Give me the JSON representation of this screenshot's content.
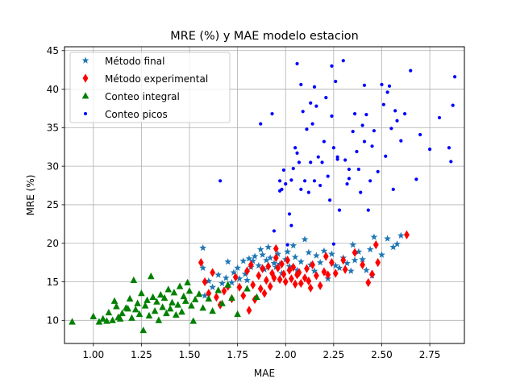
{
  "chart_data": {
    "type": "scatter",
    "title": "MRE (%) y MAE modelo estacion",
    "xlabel": "MAE",
    "ylabel": "MRE (%)",
    "xlim": [
      0.85,
      2.93
    ],
    "ylim": [
      7.0,
      45.5
    ],
    "xticks": [
      1.0,
      1.25,
      1.5,
      1.75,
      2.0,
      2.25,
      2.5,
      2.75
    ],
    "xtick_labels": [
      "1.00",
      "1.25",
      "1.50",
      "1.75",
      "2.00",
      "2.25",
      "2.50",
      "2.75"
    ],
    "yticks": [
      10,
      15,
      20,
      25,
      30,
      35,
      40,
      45
    ],
    "ytick_labels": [
      "10",
      "15",
      "20",
      "25",
      "30",
      "35",
      "40",
      "45"
    ],
    "grid": true,
    "legend_position": "top-left",
    "series": [
      {
        "name": "Método final",
        "marker": "star",
        "color": "#1f77b4",
        "points": [
          [
            1.57,
            19.4
          ],
          [
            1.57,
            16.8
          ],
          [
            1.58,
            13.2
          ],
          [
            1.6,
            15.1
          ],
          [
            1.62,
            14.3
          ],
          [
            1.65,
            15.9
          ],
          [
            1.67,
            14.8
          ],
          [
            1.69,
            15.5
          ],
          [
            1.7,
            17.6
          ],
          [
            1.72,
            14.9
          ],
          [
            1.73,
            16.2
          ],
          [
            1.75,
            16.8
          ],
          [
            1.76,
            15.4
          ],
          [
            1.78,
            17.7
          ],
          [
            1.79,
            16.0
          ],
          [
            1.8,
            15.2
          ],
          [
            1.81,
            18.0
          ],
          [
            1.82,
            16.9
          ],
          [
            1.83,
            17.7
          ],
          [
            1.84,
            18.3
          ],
          [
            1.86,
            17.1
          ],
          [
            1.87,
            19.2
          ],
          [
            1.88,
            18.5
          ],
          [
            1.89,
            16.6
          ],
          [
            1.9,
            17.8
          ],
          [
            1.91,
            19.5
          ],
          [
            1.92,
            18.1
          ],
          [
            1.94,
            17.4
          ],
          [
            1.95,
            16.9
          ],
          [
            1.96,
            18.6
          ],
          [
            1.97,
            17.3
          ],
          [
            1.98,
            16.1
          ],
          [
            2.0,
            17.9
          ],
          [
            2.01,
            18.9
          ],
          [
            2.02,
            17.0
          ],
          [
            2.04,
            19.7
          ],
          [
            2.05,
            18.2
          ],
          [
            2.06,
            16.5
          ],
          [
            2.08,
            17.6
          ],
          [
            2.1,
            20.5
          ],
          [
            2.12,
            18.8
          ],
          [
            2.13,
            17.2
          ],
          [
            2.15,
            16.4
          ],
          [
            2.16,
            18.4
          ],
          [
            2.18,
            17.5
          ],
          [
            2.2,
            19.0
          ],
          [
            2.22,
            15.4
          ],
          [
            2.24,
            18.6
          ],
          [
            2.26,
            17.1
          ],
          [
            2.28,
            16.8
          ],
          [
            2.3,
            18.1
          ],
          [
            2.32,
            17.4
          ],
          [
            2.35,
            19.8
          ],
          [
            2.36,
            17.8
          ],
          [
            2.38,
            18.9
          ],
          [
            2.4,
            17.9
          ],
          [
            2.42,
            16.5
          ],
          [
            2.44,
            19.2
          ],
          [
            2.46,
            20.8
          ],
          [
            2.5,
            18.5
          ],
          [
            2.53,
            20.6
          ],
          [
            2.56,
            19.5
          ],
          [
            2.58,
            19.9
          ],
          [
            2.6,
            21.0
          ],
          [
            2.45,
            15.8
          ],
          [
            2.34,
            16.4
          ]
        ]
      },
      {
        "name": "Método experimental",
        "marker": "diamond",
        "color": "#ff0000",
        "points": [
          [
            1.56,
            17.5
          ],
          [
            1.58,
            15.0
          ],
          [
            1.6,
            13.5
          ],
          [
            1.62,
            16.2
          ],
          [
            1.64,
            13.0
          ],
          [
            1.66,
            12.0
          ],
          [
            1.68,
            13.8
          ],
          [
            1.7,
            14.4
          ],
          [
            1.72,
            12.8
          ],
          [
            1.74,
            15.6
          ],
          [
            1.76,
            14.3
          ],
          [
            1.78,
            13.2
          ],
          [
            1.8,
            16.4
          ],
          [
            1.81,
            11.3
          ],
          [
            1.82,
            17.2
          ],
          [
            1.83,
            14.6
          ],
          [
            1.84,
            12.7
          ],
          [
            1.86,
            15.8
          ],
          [
            1.87,
            14.1
          ],
          [
            1.88,
            16.7
          ],
          [
            1.89,
            13.5
          ],
          [
            1.9,
            15.2
          ],
          [
            1.91,
            17.0
          ],
          [
            1.92,
            14.4
          ],
          [
            1.93,
            16.1
          ],
          [
            1.94,
            15.5
          ],
          [
            1.95,
            18.1
          ],
          [
            1.96,
            16.8
          ],
          [
            1.97,
            15.3
          ],
          [
            1.98,
            17.3
          ],
          [
            1.99,
            16.0
          ],
          [
            2.0,
            15.0
          ],
          [
            2.01,
            17.8
          ],
          [
            2.02,
            16.5
          ],
          [
            2.03,
            15.4
          ],
          [
            2.04,
            16.9
          ],
          [
            2.05,
            14.7
          ],
          [
            2.06,
            15.9
          ],
          [
            2.07,
            16.2
          ],
          [
            2.08,
            14.8
          ],
          [
            2.1,
            15.5
          ],
          [
            2.11,
            16.7
          ],
          [
            2.12,
            15.1
          ],
          [
            2.14,
            17.2
          ],
          [
            2.16,
            15.8
          ],
          [
            2.18,
            14.5
          ],
          [
            2.2,
            16.3
          ],
          [
            2.21,
            18.3
          ],
          [
            2.22,
            15.9
          ],
          [
            2.24,
            17.5
          ],
          [
            2.26,
            16.1
          ],
          [
            2.3,
            17.8
          ],
          [
            2.31,
            16.6
          ],
          [
            2.36,
            18.8
          ],
          [
            2.4,
            17.2
          ],
          [
            2.43,
            14.9
          ],
          [
            2.45,
            16.0
          ],
          [
            2.47,
            19.8
          ],
          [
            2.48,
            17.5
          ],
          [
            2.63,
            21.1
          ],
          [
            1.95,
            19.3
          ],
          [
            2.13,
            14.2
          ]
        ]
      },
      {
        "name": "Conteo integral",
        "marker": "triangle",
        "color": "#008000",
        "points": [
          [
            0.89,
            9.8
          ],
          [
            1.0,
            10.5
          ],
          [
            1.03,
            9.8
          ],
          [
            1.05,
            10.2
          ],
          [
            1.07,
            9.9
          ],
          [
            1.08,
            11.0
          ],
          [
            1.1,
            10.0
          ],
          [
            1.11,
            12.5
          ],
          [
            1.12,
            11.8
          ],
          [
            1.13,
            10.4
          ],
          [
            1.15,
            10.9
          ],
          [
            1.17,
            11.6
          ],
          [
            1.19,
            12.8
          ],
          [
            1.2,
            10.3
          ],
          [
            1.21,
            15.2
          ],
          [
            1.22,
            11.4
          ],
          [
            1.23,
            12.2
          ],
          [
            1.24,
            10.8
          ],
          [
            1.25,
            13.5
          ],
          [
            1.26,
            8.7
          ],
          [
            1.27,
            11.9
          ],
          [
            1.28,
            12.6
          ],
          [
            1.29,
            10.6
          ],
          [
            1.3,
            15.7
          ],
          [
            1.31,
            13.0
          ],
          [
            1.32,
            11.2
          ],
          [
            1.33,
            12.4
          ],
          [
            1.34,
            10.0
          ],
          [
            1.35,
            13.3
          ],
          [
            1.36,
            11.7
          ],
          [
            1.37,
            12.9
          ],
          [
            1.38,
            10.9
          ],
          [
            1.39,
            14.0
          ],
          [
            1.4,
            11.5
          ],
          [
            1.41,
            12.3
          ],
          [
            1.42,
            13.6
          ],
          [
            1.43,
            10.7
          ],
          [
            1.44,
            12.0
          ],
          [
            1.45,
            14.4
          ],
          [
            1.46,
            11.1
          ],
          [
            1.47,
            13.1
          ],
          [
            1.48,
            12.5
          ],
          [
            1.49,
            14.9
          ],
          [
            1.5,
            13.8
          ],
          [
            1.51,
            11.9
          ],
          [
            1.52,
            9.9
          ],
          [
            1.53,
            12.7
          ],
          [
            1.55,
            13.4
          ],
          [
            1.57,
            11.6
          ],
          [
            1.6,
            12.8
          ],
          [
            1.62,
            11.2
          ],
          [
            1.65,
            13.9
          ],
          [
            1.67,
            12.2
          ],
          [
            1.7,
            14.6
          ],
          [
            1.72,
            12.9
          ],
          [
            1.75,
            10.8
          ],
          [
            1.8,
            14.1
          ],
          [
            1.85,
            13.0
          ],
          [
            1.18,
            11.5
          ],
          [
            1.14,
            10.2
          ]
        ]
      },
      {
        "name": "Conteo picos",
        "marker": "dot",
        "color": "#0000ff",
        "points": [
          [
            1.66,
            28.1
          ],
          [
            1.87,
            35.5
          ],
          [
            1.93,
            36.8
          ],
          [
            1.94,
            21.6
          ],
          [
            1.97,
            28.1
          ],
          [
            1.97,
            26.8
          ],
          [
            1.98,
            27.0
          ],
          [
            1.99,
            29.5
          ],
          [
            2.0,
            27.7
          ],
          [
            2.01,
            19.8
          ],
          [
            2.02,
            23.8
          ],
          [
            2.03,
            28.2
          ],
          [
            2.04,
            29.7
          ],
          [
            2.05,
            32.4
          ],
          [
            2.06,
            43.3
          ],
          [
            2.06,
            31.7
          ],
          [
            2.07,
            30.5
          ],
          [
            2.08,
            40.6
          ],
          [
            2.08,
            27.0
          ],
          [
            2.09,
            37.1
          ],
          [
            2.1,
            28.1
          ],
          [
            2.11,
            34.8
          ],
          [
            2.12,
            26.6
          ],
          [
            2.13,
            30.5
          ],
          [
            2.13,
            38.2
          ],
          [
            2.14,
            35.5
          ],
          [
            2.15,
            28.1
          ],
          [
            2.16,
            37.8
          ],
          [
            2.17,
            31.2
          ],
          [
            2.18,
            27.5
          ],
          [
            2.19,
            30.5
          ],
          [
            2.2,
            33.2
          ],
          [
            2.21,
            38.9
          ],
          [
            2.22,
            28.7
          ],
          [
            2.23,
            25.6
          ],
          [
            2.24,
            36.5
          ],
          [
            2.25,
            32.4
          ],
          [
            2.25,
            19.9
          ],
          [
            2.26,
            41.0
          ],
          [
            2.27,
            30.9
          ],
          [
            2.28,
            24.3
          ],
          [
            2.3,
            43.7
          ],
          [
            2.31,
            30.8
          ],
          [
            2.32,
            27.7
          ],
          [
            2.33,
            29.6
          ],
          [
            2.35,
            34.5
          ],
          [
            2.36,
            36.8
          ],
          [
            2.37,
            31.9
          ],
          [
            2.38,
            29.6
          ],
          [
            2.39,
            26.6
          ],
          [
            2.4,
            35.3
          ],
          [
            2.41,
            33.2
          ],
          [
            2.42,
            36.7
          ],
          [
            2.43,
            24.3
          ],
          [
            2.44,
            28.1
          ],
          [
            2.45,
            32.6
          ],
          [
            2.46,
            34.6
          ],
          [
            2.48,
            29.3
          ],
          [
            2.5,
            40.6
          ],
          [
            2.51,
            38.0
          ],
          [
            2.52,
            31.3
          ],
          [
            2.53,
            39.6
          ],
          [
            2.54,
            40.4
          ],
          [
            2.55,
            34.9
          ],
          [
            2.56,
            27.0
          ],
          [
            2.57,
            37.2
          ],
          [
            2.58,
            35.9
          ],
          [
            2.6,
            33.3
          ],
          [
            2.62,
            36.8
          ],
          [
            2.65,
            42.4
          ],
          [
            2.68,
            28.3
          ],
          [
            2.7,
            34.1
          ],
          [
            2.75,
            32.2
          ],
          [
            2.8,
            36.3
          ],
          [
            2.85,
            32.4
          ],
          [
            2.86,
            30.6
          ],
          [
            2.87,
            37.9
          ],
          [
            2.88,
            41.6
          ],
          [
            2.03,
            22.3
          ],
          [
            2.24,
            43.0
          ],
          [
            2.15,
            40.3
          ],
          [
            2.41,
            40.5
          ],
          [
            2.33,
            28.4
          ],
          [
            2.27,
            31.2
          ]
        ]
      }
    ]
  }
}
